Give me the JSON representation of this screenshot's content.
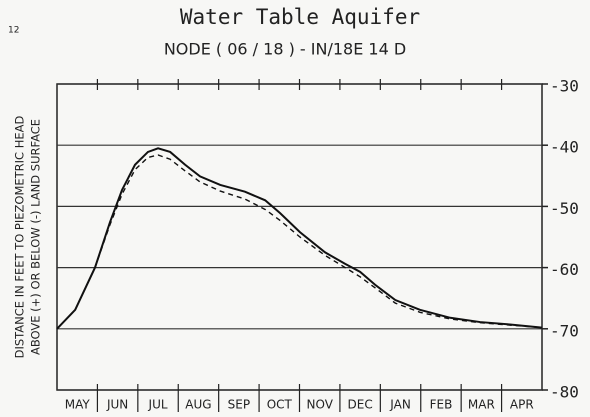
{
  "chart_data": {
    "type": "line",
    "title": "Water Table Aquifer",
    "subtitle": "NODE ( 06 / 18 )  -  IN/18E  14 D",
    "corner_label": "12",
    "y_label": [
      "DISTANCE IN FEET TO PIEZOMETRIC HEAD",
      "ABOVE (+) OR BELOW (-) LAND SURFACE"
    ],
    "categories": [
      "MAY",
      "JUN",
      "JUL",
      "AUG",
      "SEP",
      "OCT",
      "NOV",
      "DEC",
      "JAN",
      "FEB",
      "MAR",
      "APR"
    ],
    "x": [
      0,
      0.45,
      0.94,
      1.31,
      1.61,
      1.93,
      2.25,
      2.5,
      2.8,
      3.17,
      3.54,
      4.04,
      4.65,
      5.15,
      5.52,
      6.01,
      6.63,
      7.13,
      7.5,
      7.87,
      8.37,
      8.98,
      9.73,
      10.47,
      11.21,
      12
    ],
    "xlim": [
      0,
      12
    ],
    "series": [
      {
        "color": "#111111",
        "dash": false,
        "values": [
          -70,
          -66.9,
          -60,
          -52.6,
          -47.3,
          -43.2,
          -41.1,
          -40.5,
          -41.1,
          -43.2,
          -45.1,
          -46.5,
          -47.6,
          -49,
          -51.1,
          -54.2,
          -57.5,
          -59.4,
          -60.7,
          -62.8,
          -65.3,
          -66.9,
          -68.2,
          -68.9,
          -69.3,
          -69.8
        ]
      },
      {
        "color": "#111111",
        "dash": true,
        "values": [
          -70,
          -66.9,
          -60,
          -53,
          -48,
          -44,
          -42,
          -41.6,
          -42.3,
          -44.2,
          -46,
          -47.5,
          -48.8,
          -50.5,
          -52.3,
          -55,
          -58,
          -60,
          -61.5,
          -63.3,
          -65.8,
          -67.3,
          -68.4,
          -69,
          -69.4,
          -69.8
        ]
      }
    ],
    "ylim": [
      -80,
      -30
    ],
    "yticks": [
      -30,
      -40,
      -50,
      -60,
      -70,
      -80
    ],
    "grid": true
  }
}
